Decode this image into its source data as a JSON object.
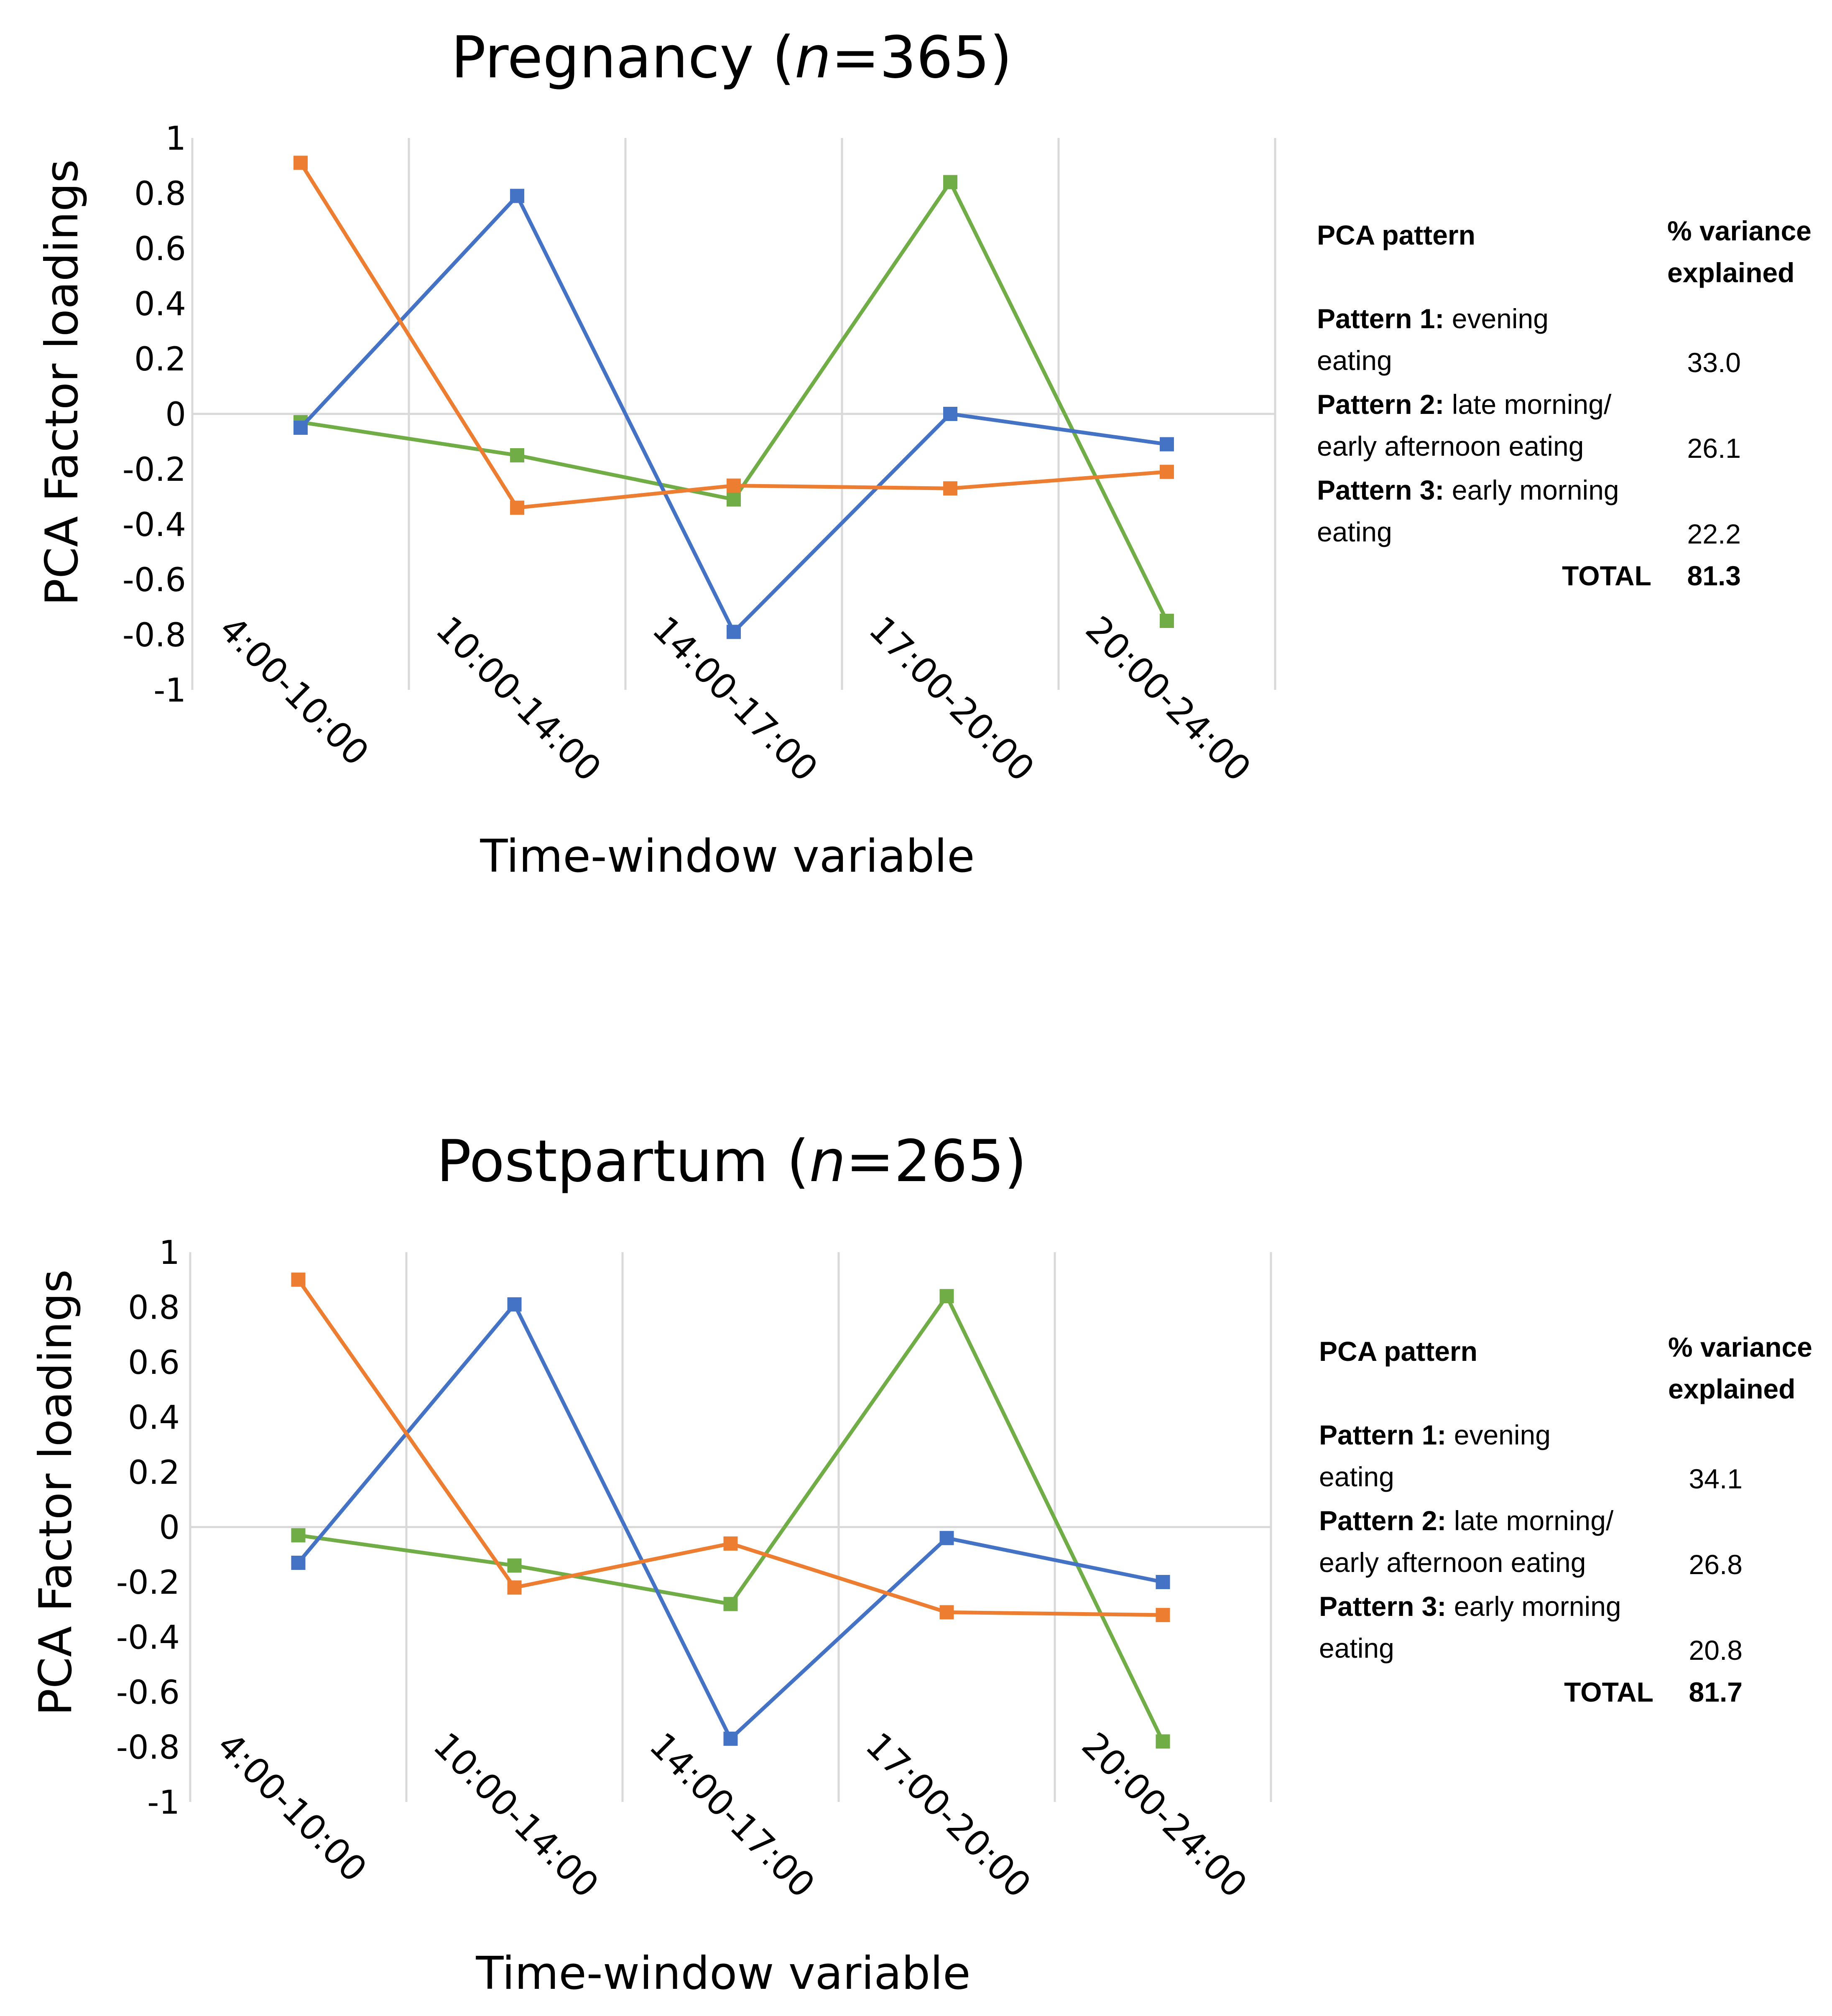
{
  "colors": {
    "pattern1": "#70AD47",
    "pattern2": "#4472C4",
    "pattern3": "#ED7D31",
    "grid": "#d9d9d9"
  },
  "chart_data": [
    {
      "type": "line",
      "title_prefix": "Pregnancy (",
      "title_n": "n",
      "title_suffix": "=365)",
      "xlabel": "Time-window variable",
      "ylabel": "PCA Factor loadings",
      "ylim": [
        -1,
        1
      ],
      "yticks": [
        "1",
        "0.8",
        "0.6",
        "0.4",
        "0.2",
        "0",
        "-0.2",
        "-0.4",
        "-0.6",
        "-0.8",
        "-1"
      ],
      "categories": [
        "4:00-10:00",
        "10:00-14:00",
        "14:00-17:00",
        "17:00-20:00",
        "20:00-24:00"
      ],
      "series": [
        {
          "name": "Pattern 1",
          "color_key": "pattern1",
          "values": [
            -0.03,
            -0.15,
            -0.31,
            0.84,
            -0.75
          ]
        },
        {
          "name": "Pattern 2",
          "color_key": "pattern2",
          "values": [
            -0.05,
            0.79,
            -0.79,
            0.0,
            -0.11
          ]
        },
        {
          "name": "Pattern 3",
          "color_key": "pattern3",
          "values": [
            0.91,
            -0.34,
            -0.26,
            -0.27,
            -0.21
          ]
        }
      ],
      "legend": {
        "header_pattern": "PCA pattern",
        "header_variance_1": "% variance",
        "header_variance_2": "explained",
        "p1_label": "Pattern 1:",
        "p1_desc_1": "evening",
        "p1_desc_2": "eating",
        "p1_value": "33.0",
        "p2_label": "Pattern 2:",
        "p2_desc_1": "late morning/",
        "p2_desc_2": "early afternoon eating",
        "p2_value": "26.1",
        "p3_label": "Pattern 3:",
        "p3_desc_1": "early morning",
        "p3_desc_2": "eating",
        "p3_value": "22.2",
        "total_label": "TOTAL",
        "total_value": "81.3"
      }
    },
    {
      "type": "line",
      "title_prefix": "Postpartum (",
      "title_n": "n",
      "title_suffix": "=265)",
      "xlabel": "Time-window variable",
      "ylabel": "PCA Factor loadings",
      "ylim": [
        -1,
        1
      ],
      "yticks": [
        "1",
        "0.8",
        "0.6",
        "0.4",
        "0.2",
        "0",
        "-0.2",
        "-0.4",
        "-0.6",
        "-0.8",
        "-1"
      ],
      "categories": [
        "4:00-10:00",
        "10:00-14:00",
        "14:00-17:00",
        "17:00-20:00",
        "20:00-24:00"
      ],
      "series": [
        {
          "name": "Pattern 1",
          "color_key": "pattern1",
          "values": [
            -0.03,
            -0.14,
            -0.28,
            0.84,
            -0.78
          ]
        },
        {
          "name": "Pattern 2",
          "color_key": "pattern2",
          "values": [
            -0.13,
            0.81,
            -0.77,
            -0.04,
            -0.2
          ]
        },
        {
          "name": "Pattern 3",
          "color_key": "pattern3",
          "values": [
            0.9,
            -0.22,
            -0.06,
            -0.31,
            -0.32
          ]
        }
      ],
      "legend": {
        "header_pattern": "PCA pattern",
        "header_variance_1": "% variance",
        "header_variance_2": "explained",
        "p1_label": "Pattern 1:",
        "p1_desc_1": "evening",
        "p1_desc_2": "eating",
        "p1_value": "34.1",
        "p2_label": "Pattern 2:",
        "p2_desc_1": "late morning/",
        "p2_desc_2": "early afternoon eating",
        "p2_value": "26.8",
        "p3_label": "Pattern 3:",
        "p3_desc_1": "early morning",
        "p3_desc_2": "eating",
        "p3_value": "20.8",
        "total_label": "TOTAL",
        "total_value": "81.7"
      }
    }
  ]
}
